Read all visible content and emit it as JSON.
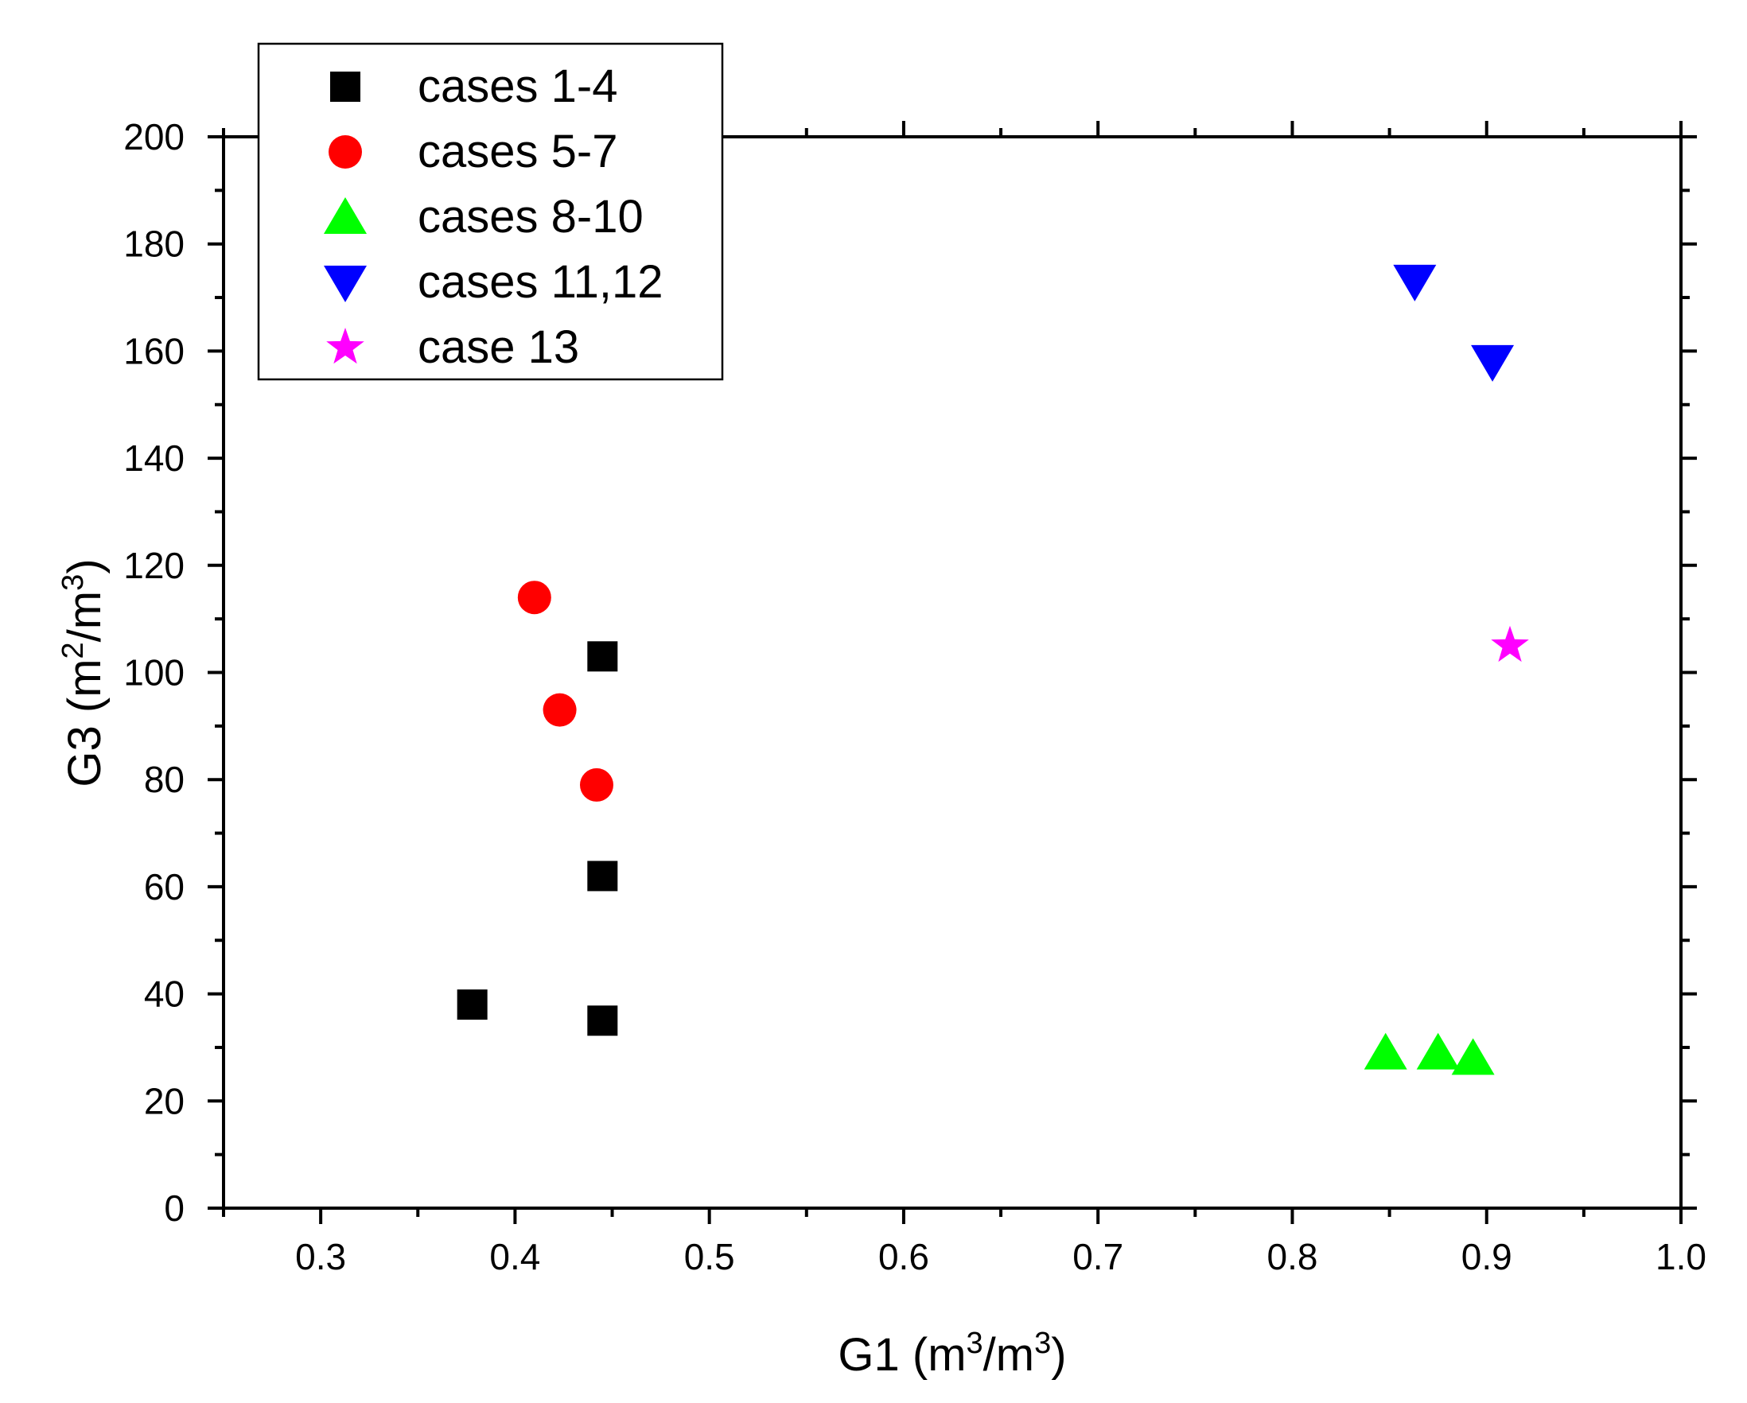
{
  "chart_data": {
    "type": "scatter",
    "xlabel": "G1",
    "xlabel_unit": {
      "open": " (m",
      "sup1": "3",
      "mid": "/m",
      "sup2": "3",
      "close": ")"
    },
    "ylabel": "G3",
    "ylabel_unit": {
      "open": " (m",
      "sup1": "2",
      "mid": "/m",
      "sup2": "3",
      "close": ")"
    },
    "xlim": [
      0.25,
      1.0
    ],
    "ylim": [
      0,
      200
    ],
    "xticks": [
      0.3,
      0.4,
      0.5,
      0.6,
      0.7,
      0.8,
      0.9,
      1.0
    ],
    "xtick_labels": [
      "0.3",
      "0.4",
      "0.5",
      "0.6",
      "0.7",
      "0.8",
      "0.9",
      "1.0"
    ],
    "yticks": [
      0,
      20,
      40,
      60,
      80,
      100,
      120,
      140,
      160,
      180,
      200
    ],
    "ytick_labels": [
      "0",
      "20",
      "40",
      "60",
      "80",
      "100",
      "120",
      "140",
      "160",
      "180",
      "200"
    ],
    "grid": false,
    "legend_position": "top-left",
    "series": [
      {
        "name": "cases 1-4",
        "marker": "square",
        "color": "#000000",
        "points": [
          [
            0.378,
            38
          ],
          [
            0.445,
            35
          ],
          [
            0.445,
            62
          ],
          [
            0.445,
            103
          ]
        ]
      },
      {
        "name": "cases 5-7",
        "marker": "circle",
        "color": "#ff0000",
        "points": [
          [
            0.41,
            114
          ],
          [
            0.423,
            93
          ],
          [
            0.442,
            79
          ]
        ]
      },
      {
        "name": "cases 8-10",
        "marker": "triangle-up",
        "color": "#00ff00",
        "points": [
          [
            0.848,
            29
          ],
          [
            0.875,
            29
          ],
          [
            0.893,
            28
          ]
        ]
      },
      {
        "name": "cases 11,12",
        "marker": "triangle-down",
        "color": "#0000ff",
        "points": [
          [
            0.863,
            173
          ],
          [
            0.903,
            158
          ]
        ]
      },
      {
        "name": "case 13",
        "marker": "star",
        "color": "#ff00ff",
        "points": [
          [
            0.912,
            105
          ]
        ]
      }
    ]
  }
}
